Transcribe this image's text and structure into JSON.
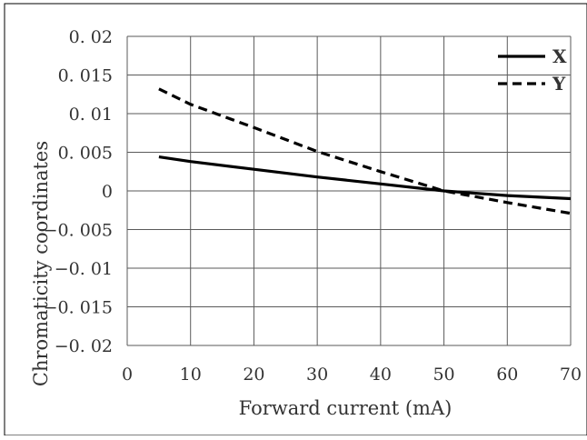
{
  "chart_data": {
    "type": "line",
    "title": "",
    "xlabel": "Forward current (mA)",
    "ylabel": "Chromaticity coordinates",
    "xlim": [
      0,
      70
    ],
    "ylim": [
      -0.02,
      0.02
    ],
    "x_ticks": [
      0,
      10,
      20,
      30,
      40,
      50,
      60,
      70
    ],
    "x_tick_labels": [
      "0",
      "10",
      "20",
      "30",
      "40",
      "50",
      "60",
      "70"
    ],
    "y_ticks": [
      0.02,
      0.015,
      0.01,
      0.005,
      0,
      -0.005,
      -0.01,
      -0.015,
      -0.02
    ],
    "y_tick_labels": [
      "0. 02",
      "0. 015",
      "0. 01",
      "0. 005",
      "0",
      "−0. 005",
      "−0. 01",
      "−0. 015",
      "−0. 02"
    ],
    "grid": true,
    "legend_position": "top-right",
    "series": [
      {
        "name": "X",
        "style": "solid",
        "color": "#000000",
        "x": [
          5,
          10,
          20,
          30,
          40,
          50,
          60,
          70
        ],
        "y": [
          0.0044,
          0.0038,
          0.0028,
          0.0018,
          0.0009,
          0.0,
          -0.0006,
          -0.001
        ]
      },
      {
        "name": "Y",
        "style": "dashed",
        "color": "#000000",
        "x": [
          5,
          10,
          20,
          30,
          40,
          50,
          60,
          70
        ],
        "y": [
          0.0132,
          0.0112,
          0.0082,
          0.0051,
          0.0025,
          0.0,
          -0.0015,
          -0.0029
        ]
      }
    ]
  }
}
